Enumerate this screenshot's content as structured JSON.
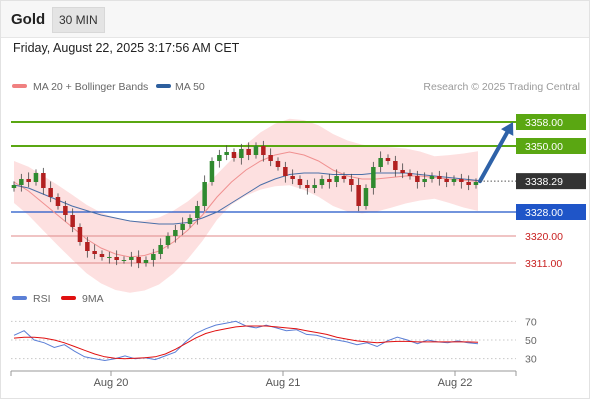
{
  "header": {
    "symbol": "Gold",
    "timeframe": "30 MIN",
    "datetime": "Friday, August 22, 2025 3:17:56 AM CET"
  },
  "legend": {
    "items": [
      {
        "label": "MA 20 + Bollinger Bands",
        "color": "#f08080"
      },
      {
        "label": "MA 50",
        "color": "#2d5f9e"
      }
    ],
    "credit": "Research © 2025 Trading Central"
  },
  "rsi_legend": {
    "items": [
      {
        "label": "RSI",
        "color": "#5b7fd6"
      },
      {
        "label": "9MA",
        "color": "#e01010"
      }
    ]
  },
  "colors": {
    "up": "#2f8a2f",
    "down": "#b22020",
    "green_level": "#5aa712",
    "blue_level": "#1f55c8",
    "red_level": "#e08a8a",
    "arrow": "#2e62a8",
    "band_fill": "#fde0e0",
    "current_price_bg": "#333333"
  },
  "chart_data": [
    {
      "type": "candlestick",
      "title": "Gold 30 MIN",
      "x_tick_labels": [
        "Aug 20",
        "Aug 21",
        "Aug 22"
      ],
      "current_price": "3338.29",
      "levels": [
        {
          "label": "3358.00",
          "value": 3358.0,
          "style": "resistance"
        },
        {
          "label": "3350.00",
          "value": 3350.0,
          "style": "resistance"
        },
        {
          "label": "3328.00",
          "value": 3328.0,
          "style": "pivot"
        },
        {
          "label": "3320.00",
          "value": 3320.0,
          "style": "support"
        },
        {
          "label": "3311.00",
          "value": 3311.0,
          "style": "support"
        }
      ],
      "ylim": [
        3306,
        3367
      ],
      "projection": {
        "from": 3338.3,
        "to": 3358.0,
        "direction": "up"
      },
      "series": [
        {
          "name": "MA 20 + Bollinger Bands",
          "type": "line",
          "style": "band",
          "values": [
            3338,
            3335,
            3331,
            3327,
            3323,
            3319,
            3316,
            3314,
            3313,
            3313.5,
            3315,
            3318,
            3322,
            3327,
            3333,
            3338,
            3342,
            3345,
            3347,
            3348,
            3347,
            3345,
            3342,
            3340,
            3339,
            3339,
            3339.5,
            3340,
            3340,
            3339.5,
            3339,
            3338.5,
            3338.3
          ]
        },
        {
          "name": "MA 50",
          "type": "line",
          "values": [
            3337,
            3336,
            3334,
            3332,
            3330,
            3328.5,
            3327,
            3326,
            3325,
            3324.5,
            3324,
            3324,
            3324.5,
            3326,
            3328,
            3331,
            3334,
            3337,
            3339,
            3340.5,
            3341,
            3341,
            3340.5,
            3340.5,
            3340.5,
            3341,
            3341,
            3341,
            3340.5,
            3340,
            3339.5,
            3339,
            3338.5
          ]
        }
      ],
      "candles_close": [
        3337,
        3339,
        3338,
        3341,
        3336,
        3333,
        3330,
        3327,
        3323,
        3318,
        3315,
        3314,
        3313,
        3313,
        3312,
        3312,
        3313,
        3311,
        3312,
        3314,
        3317,
        3320,
        3322,
        3324,
        3326,
        3330,
        3338,
        3345,
        3347,
        3348,
        3346,
        3349,
        3347,
        3350,
        3347,
        3345,
        3343,
        3340,
        3339,
        3337,
        3336,
        3337,
        3339,
        3338,
        3340,
        3339,
        3337,
        3330,
        3336,
        3343,
        3346,
        3345,
        3342,
        3341,
        3340,
        3338,
        3339,
        3340,
        3339,
        3338,
        3339,
        3338,
        3337,
        3338
      ]
    },
    {
      "type": "line",
      "title": "RSI",
      "ylim": [
        20,
        80
      ],
      "y_ticks": [
        70,
        50,
        30
      ],
      "series": [
        {
          "name": "RSI",
          "values": [
            55,
            60,
            50,
            47,
            42,
            45,
            38,
            32,
            30,
            28,
            30,
            33,
            30,
            31,
            29,
            33,
            37,
            48,
            57,
            62,
            66,
            68,
            70,
            65,
            63,
            66,
            63,
            60,
            61,
            56,
            55,
            52,
            50,
            48,
            45,
            47,
            43,
            49,
            53,
            50,
            46,
            50,
            48,
            47,
            49,
            47,
            46
          ]
        },
        {
          "name": "9MA",
          "values": [
            52,
            53,
            53,
            52,
            50,
            47,
            43,
            39,
            35,
            32,
            30.5,
            30,
            30.5,
            31,
            32,
            35,
            40,
            46,
            52,
            57,
            60,
            62,
            64,
            65,
            65,
            65,
            64,
            63,
            62,
            60,
            58,
            56,
            53,
            51,
            49,
            48,
            47,
            48,
            48.5,
            48.5,
            48,
            48,
            48,
            48,
            48,
            48,
            47.5
          ]
        }
      ]
    }
  ]
}
